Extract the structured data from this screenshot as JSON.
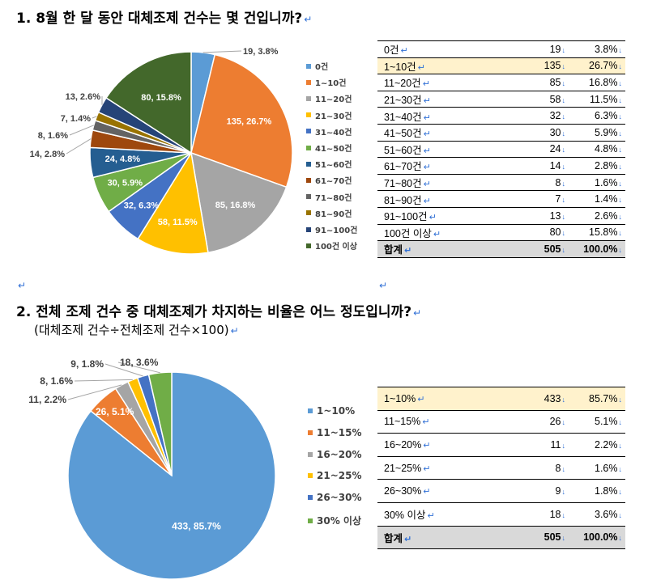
{
  "q1": {
    "title": "1. 8월 한 달 동안 대체조제 건수는 몇 건입니까?",
    "chart_data": {
      "type": "pie",
      "categories": [
        "0건",
        "1~10건",
        "11~20건",
        "21~30건",
        "31~40건",
        "41~50건",
        "51~60건",
        "61~70건",
        "71~80건",
        "81~90건",
        "91~100건",
        "100건 이상"
      ],
      "values": [
        19,
        135,
        85,
        58,
        32,
        30,
        24,
        14,
        8,
        7,
        13,
        80
      ],
      "labels": [
        "19, 3.8%",
        "135, 26.7%",
        "85, 16.8%",
        "58, 11.5%",
        "32, 6.3%",
        "30, 5.9%",
        "24, 4.8%",
        "14, 2.8%",
        "8, 1.6%",
        "7, 1.4%",
        "13, 2.6%",
        "80, 15.8%"
      ],
      "colors": [
        "#5b9bd5",
        "#ed7d31",
        "#a5a5a5",
        "#ffc000",
        "#4472c4",
        "#70ad47",
        "#255e91",
        "#9e480e",
        "#636363",
        "#997300",
        "#264478",
        "#43682b"
      ],
      "legend_position": "right"
    },
    "table": {
      "rows": [
        {
          "cat": "0건",
          "count": "19",
          "pct": "3.8%"
        },
        {
          "cat": "1~10건",
          "count": "135",
          "pct": "26.7%"
        },
        {
          "cat": "11~20건",
          "count": "85",
          "pct": "16.8%"
        },
        {
          "cat": "21~30건",
          "count": "58",
          "pct": "11.5%"
        },
        {
          "cat": "31~40건",
          "count": "32",
          "pct": "6.3%"
        },
        {
          "cat": "41~50건",
          "count": "30",
          "pct": "5.9%"
        },
        {
          "cat": "51~60건",
          "count": "24",
          "pct": "4.8%"
        },
        {
          "cat": "61~70건",
          "count": "14",
          "pct": "2.8%"
        },
        {
          "cat": "71~80건",
          "count": "8",
          "pct": "1.6%"
        },
        {
          "cat": "81~90건",
          "count": "7",
          "pct": "1.4%"
        },
        {
          "cat": "91~100건",
          "count": "13",
          "pct": "2.6%"
        },
        {
          "cat": "100건 이상",
          "count": "80",
          "pct": "15.8%"
        }
      ],
      "highlight_row": 1,
      "total": {
        "cat": "합계",
        "count": "505",
        "pct": "100.0%"
      }
    }
  },
  "q2": {
    "title": "2. 전체 조제 건수 중 대체조제가 차지하는 비율은 어느 정도입니까?",
    "subtitle": "(대체조제 건수÷전체조제 건수×100)",
    "chart_data": {
      "type": "pie",
      "categories": [
        "1~10%",
        "11~15%",
        "16~20%",
        "21~25%",
        "26~30%",
        "30% 이상"
      ],
      "values": [
        433,
        26,
        11,
        8,
        9,
        18
      ],
      "labels": [
        "433, 85.7%",
        "26, 5.1%",
        "11, 2.2%",
        "8, 1.6%",
        "9, 1.8%",
        "18, 3.6%"
      ],
      "colors": [
        "#5b9bd5",
        "#ed7d31",
        "#a5a5a5",
        "#ffc000",
        "#4472c4",
        "#70ad47"
      ],
      "legend_position": "right"
    },
    "table": {
      "rows": [
        {
          "cat": "1~10%",
          "count": "433",
          "pct": "85.7%"
        },
        {
          "cat": "11~15%",
          "count": "26",
          "pct": "5.1%"
        },
        {
          "cat": "16~20%",
          "count": "11",
          "pct": "2.2%"
        },
        {
          "cat": "21~25%",
          "count": "8",
          "pct": "1.6%"
        },
        {
          "cat": "26~30%",
          "count": "9",
          "pct": "1.8%"
        },
        {
          "cat": "30% 이상",
          "count": "18",
          "pct": "3.6%"
        }
      ],
      "highlight_row": 0,
      "total": {
        "cat": "합계",
        "count": "505",
        "pct": "100.0%"
      }
    }
  }
}
